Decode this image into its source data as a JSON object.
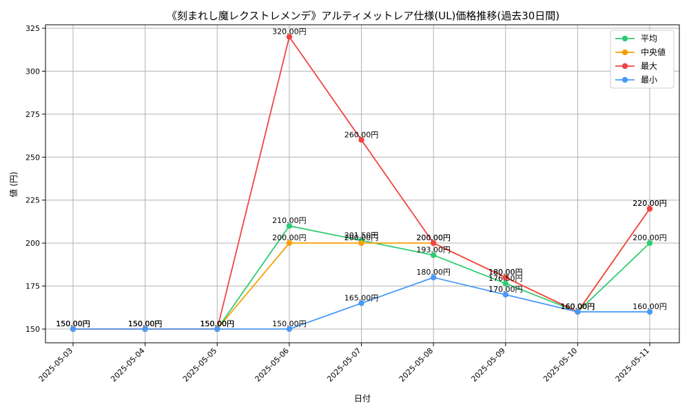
{
  "chart_data": {
    "type": "line",
    "title": "《刻まれし魔レクストレメンデ》アルティメットレア仕様(UL)価格推移(過去30日間)",
    "xlabel": "日付",
    "ylabel": "値 (円)",
    "categories": [
      "2025-05-03",
      "2025-05-04",
      "2025-05-05",
      "2025-05-06",
      "2025-05-07",
      "2025-05-08",
      "2025-05-09",
      "2025-05-10",
      "2025-05-11"
    ],
    "ylim": [
      142,
      327
    ],
    "yticks": [
      150,
      175,
      200,
      225,
      250,
      275,
      300,
      325
    ],
    "grid": true,
    "legend_position": "top-right",
    "value_suffix": "円",
    "series": [
      {
        "name": "平均",
        "color": "#2ecc71",
        "values": [
          150,
          150,
          150,
          210,
          201.5,
          193,
          176.5,
          160,
          200
        ]
      },
      {
        "name": "中央値",
        "color": "#f5a000",
        "values": [
          150,
          150,
          150,
          200,
          200,
          200,
          180,
          160,
          220
        ]
      },
      {
        "name": "最大",
        "color": "#ef4444",
        "values": [
          150,
          150,
          150,
          320,
          260,
          200,
          180,
          160,
          220
        ]
      },
      {
        "name": "最小",
        "color": "#4a9af5",
        "values": [
          150,
          150,
          150,
          150,
          165,
          180,
          170,
          160,
          160
        ]
      }
    ]
  }
}
